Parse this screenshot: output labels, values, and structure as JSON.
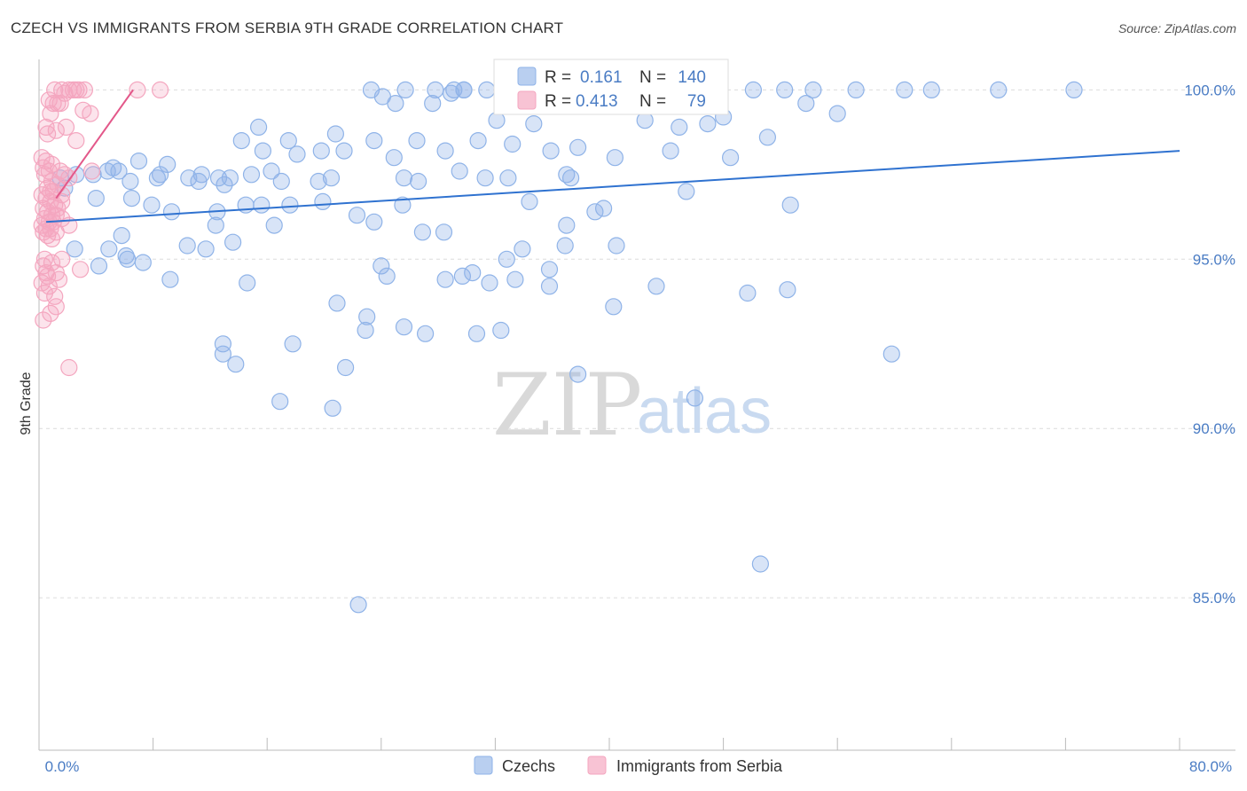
{
  "chart_data": {
    "type": "scatter",
    "title": "CZECH VS IMMIGRANTS FROM SERBIA 9TH GRADE CORRELATION CHART",
    "source": "Source: ZipAtlas.com",
    "ylabel": "9th Grade",
    "xlim": [
      0,
      80
    ],
    "ylim": [
      80.5,
      100.9
    ],
    "x_tick_labels": [
      "0.0%",
      "80.0%"
    ],
    "y_ticks": [
      {
        "value": 100,
        "label": "100.0%"
      },
      {
        "value": 95,
        "label": "95.0%"
      },
      {
        "value": 90,
        "label": "90.0%"
      },
      {
        "value": 85,
        "label": "85.0%"
      }
    ],
    "watermark": {
      "zip": "ZIP",
      "atlas": "atlas"
    },
    "legend": {
      "stats": [
        {
          "r_label": "R =",
          "r_value": "0.161",
          "n_label": "N =",
          "n_value": "140"
        },
        {
          "r_label": "R =",
          "r_value": "0.413",
          "n_label": "N =",
          "n_value": "79"
        }
      ]
    },
    "series": [
      {
        "name": "Czechs",
        "color": "#8fb3e8",
        "line_color": "#2f72d0",
        "trend": [
          [
            0.5,
            96.1
          ],
          [
            80,
            98.2
          ]
        ],
        "points": [
          [
            23.3,
            100
          ],
          [
            25.7,
            100
          ],
          [
            27.8,
            100
          ],
          [
            29.1,
            100
          ],
          [
            29.8,
            100
          ],
          [
            31.4,
            100
          ],
          [
            41.3,
            100
          ],
          [
            42.2,
            100
          ],
          [
            50.1,
            100
          ],
          [
            52.3,
            100
          ],
          [
            54.3,
            100
          ],
          [
            57.3,
            100
          ],
          [
            60.7,
            100
          ],
          [
            62.6,
            100
          ],
          [
            67.3,
            100
          ],
          [
            72.6,
            100
          ],
          [
            29.8,
            100
          ],
          [
            28.9,
            99.9
          ],
          [
            24.1,
            99.8
          ],
          [
            25.0,
            99.6
          ],
          [
            27.6,
            99.6
          ],
          [
            43.7,
            99.6
          ],
          [
            53.8,
            99.6
          ],
          [
            32.1,
            99.1
          ],
          [
            34.7,
            99.0
          ],
          [
            42.5,
            99.1
          ],
          [
            48.0,
            99.2
          ],
          [
            56.0,
            99.3
          ],
          [
            44.9,
            98.9
          ],
          [
            46.9,
            99.0
          ],
          [
            51.1,
            98.6
          ],
          [
            15.4,
            98.9
          ],
          [
            14.2,
            98.5
          ],
          [
            15.7,
            98.2
          ],
          [
            17.5,
            98.5
          ],
          [
            18.1,
            98.1
          ],
          [
            20.8,
            98.7
          ],
          [
            19.8,
            98.2
          ],
          [
            21.4,
            98.2
          ],
          [
            23.5,
            98.5
          ],
          [
            26.5,
            98.5
          ],
          [
            28.5,
            98.2
          ],
          [
            30.8,
            98.5
          ],
          [
            33.2,
            98.4
          ],
          [
            35.9,
            98.2
          ],
          [
            40.4,
            98.0
          ],
          [
            44.3,
            98.2
          ],
          [
            48.5,
            98.0
          ],
          [
            37.8,
            98.3
          ],
          [
            24.9,
            98.0
          ],
          [
            9.0,
            97.8
          ],
          [
            13.0,
            97.2
          ],
          [
            11.4,
            97.5
          ],
          [
            12.6,
            97.4
          ],
          [
            13.4,
            97.4
          ],
          [
            16.3,
            97.6
          ],
          [
            17.0,
            97.3
          ],
          [
            25.6,
            97.4
          ],
          [
            26.6,
            97.3
          ],
          [
            29.5,
            97.6
          ],
          [
            31.3,
            97.4
          ],
          [
            32.9,
            97.4
          ],
          [
            37.0,
            97.5
          ],
          [
            45.4,
            97.0
          ],
          [
            37.3,
            97.4
          ],
          [
            6.4,
            97.3
          ],
          [
            5.2,
            97.7
          ],
          [
            4.8,
            97.6
          ],
          [
            5.6,
            97.6
          ],
          [
            2.6,
            97.5
          ],
          [
            3.8,
            97.5
          ],
          [
            1.8,
            97.1
          ],
          [
            1.5,
            97.4
          ],
          [
            7.0,
            97.9
          ],
          [
            8.5,
            97.5
          ],
          [
            8.3,
            97.4
          ],
          [
            10.5,
            97.4
          ],
          [
            11.2,
            97.3
          ],
          [
            14.9,
            97.5
          ],
          [
            19.6,
            97.3
          ],
          [
            20.5,
            97.4
          ],
          [
            6.5,
            96.8
          ],
          [
            4.0,
            96.8
          ],
          [
            7.9,
            96.6
          ],
          [
            9.3,
            96.4
          ],
          [
            12.4,
            96.0
          ],
          [
            12.5,
            96.4
          ],
          [
            14.5,
            96.6
          ],
          [
            15.6,
            96.6
          ],
          [
            17.6,
            96.6
          ],
          [
            19.9,
            96.7
          ],
          [
            25.5,
            96.6
          ],
          [
            34.4,
            96.7
          ],
          [
            39.6,
            96.5
          ],
          [
            52.7,
            96.6
          ],
          [
            40.5,
            95.4
          ],
          [
            16.5,
            96.0
          ],
          [
            22.3,
            96.3
          ],
          [
            23.5,
            96.1
          ],
          [
            26.9,
            95.8
          ],
          [
            28.4,
            95.8
          ],
          [
            32.8,
            95.0
          ],
          [
            24.0,
            94.8
          ],
          [
            33.4,
            94.4
          ],
          [
            10.4,
            95.4
          ],
          [
            11.7,
            95.3
          ],
          [
            13.6,
            95.5
          ],
          [
            33.9,
            95.3
          ],
          [
            37.0,
            96.0
          ],
          [
            39.0,
            96.4
          ],
          [
            36.9,
            95.4
          ],
          [
            29.7,
            94.5
          ],
          [
            30.4,
            94.6
          ],
          [
            40.3,
            93.6
          ],
          [
            27.1,
            92.8
          ],
          [
            31.6,
            94.3
          ],
          [
            35.8,
            94.2
          ],
          [
            28.5,
            94.4
          ],
          [
            43.3,
            94.2
          ],
          [
            49.7,
            94.0
          ],
          [
            52.5,
            94.1
          ],
          [
            35.8,
            94.7
          ],
          [
            4.9,
            95.3
          ],
          [
            6.1,
            95.1
          ],
          [
            2.5,
            95.3
          ],
          [
            5.8,
            95.7
          ],
          [
            4.2,
            94.8
          ],
          [
            6.2,
            95.0
          ],
          [
            7.3,
            94.9
          ],
          [
            9.2,
            94.4
          ],
          [
            12.9,
            92.5
          ],
          [
            12.9,
            92.2
          ],
          [
            17.8,
            92.5
          ],
          [
            21.5,
            91.8
          ],
          [
            14.6,
            94.3
          ],
          [
            20.9,
            93.7
          ],
          [
            25.6,
            93.0
          ],
          [
            24.4,
            94.5
          ],
          [
            30.7,
            92.8
          ],
          [
            23.0,
            93.3
          ],
          [
            22.9,
            92.9
          ],
          [
            13.8,
            91.9
          ],
          [
            32.4,
            92.9
          ],
          [
            37.8,
            91.6
          ],
          [
            16.9,
            90.8
          ],
          [
            20.6,
            90.6
          ],
          [
            46.0,
            90.9
          ],
          [
            50.6,
            86.0
          ],
          [
            22.4,
            84.8
          ],
          [
            59.8,
            92.2
          ]
        ]
      },
      {
        "name": "Immigrants from Serbia",
        "color": "#f4a6bf",
        "line_color": "#e3588a",
        "trend": [
          [
            1.2,
            96.8
          ],
          [
            6.6,
            100
          ]
        ],
        "points": [
          [
            1.1,
            100
          ],
          [
            1.6,
            100
          ],
          [
            2.1,
            100
          ],
          [
            2.4,
            100
          ],
          [
            2.6,
            100
          ],
          [
            2.8,
            100
          ],
          [
            1.8,
            99.9
          ],
          [
            3.2,
            100
          ],
          [
            6.9,
            100
          ],
          [
            8.5,
            100
          ],
          [
            0.7,
            99.7
          ],
          [
            1.0,
            99.6
          ],
          [
            1.3,
            99.6
          ],
          [
            1.5,
            99.6
          ],
          [
            0.8,
            99.3
          ],
          [
            3.1,
            99.4
          ],
          [
            3.6,
            99.3
          ],
          [
            0.5,
            98.9
          ],
          [
            1.2,
            98.8
          ],
          [
            1.9,
            98.9
          ],
          [
            0.6,
            98.7
          ],
          [
            2.6,
            98.5
          ],
          [
            0.2,
            98.0
          ],
          [
            0.5,
            97.9
          ],
          [
            0.9,
            97.8
          ],
          [
            0.3,
            97.7
          ],
          [
            0.7,
            97.6
          ],
          [
            1.5,
            97.6
          ],
          [
            1.8,
            97.5
          ],
          [
            2.1,
            97.4
          ],
          [
            3.7,
            97.6
          ],
          [
            0.4,
            97.5
          ],
          [
            0.9,
            97.3
          ],
          [
            1.3,
            97.2
          ],
          [
            0.6,
            97.1
          ],
          [
            1.0,
            97.0
          ],
          [
            0.2,
            96.9
          ],
          [
            0.5,
            96.8
          ],
          [
            0.8,
            96.7
          ],
          [
            1.1,
            96.6
          ],
          [
            1.6,
            96.7
          ],
          [
            0.3,
            96.5
          ],
          [
            0.6,
            96.4
          ],
          [
            0.9,
            96.3
          ],
          [
            1.2,
            96.3
          ],
          [
            0.4,
            96.2
          ],
          [
            0.7,
            96.1
          ],
          [
            1.0,
            96.1
          ],
          [
            0.2,
            96.0
          ],
          [
            0.5,
            95.9
          ],
          [
            0.8,
            95.9
          ],
          [
            1.2,
            95.8
          ],
          [
            2.1,
            96.0
          ],
          [
            1.6,
            96.2
          ],
          [
            0.3,
            95.8
          ],
          [
            0.6,
            95.7
          ],
          [
            0.9,
            95.6
          ],
          [
            0.4,
            95.0
          ],
          [
            0.9,
            94.9
          ],
          [
            1.6,
            95.0
          ],
          [
            0.3,
            94.8
          ],
          [
            1.2,
            94.6
          ],
          [
            2.9,
            94.7
          ],
          [
            0.6,
            94.5
          ],
          [
            1.4,
            94.4
          ],
          [
            0.2,
            94.3
          ],
          [
            0.7,
            94.2
          ],
          [
            0.4,
            94.0
          ],
          [
            1.1,
            93.9
          ],
          [
            1.2,
            93.6
          ],
          [
            0.8,
            93.4
          ],
          [
            0.3,
            93.2
          ],
          [
            2.1,
            91.8
          ],
          [
            0.5,
            94.6
          ],
          [
            1.6,
            96.9
          ],
          [
            0.8,
            97.0
          ],
          [
            1.3,
            96.5
          ]
        ]
      }
    ]
  }
}
